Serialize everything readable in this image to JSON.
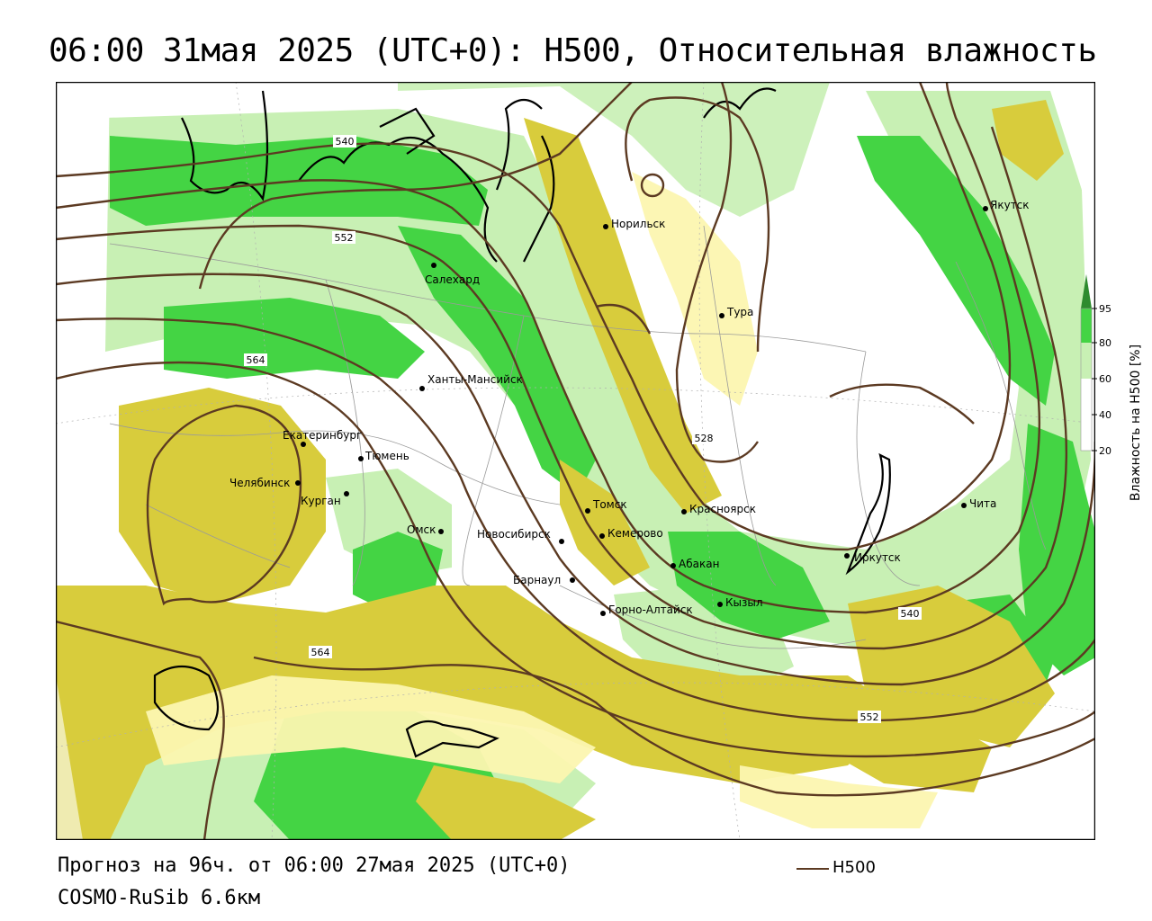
{
  "title": "06:00 31мая 2025 (UTC+0): H500, Относительная влажность",
  "footer": {
    "forecast": "Прогноз на 96ч. от 06:00 27мая 2025 (UTC+0)",
    "model": "COSMO-RuSib 6.6км"
  },
  "legend": {
    "line_label": "H500",
    "line_color": "#5c3a22"
  },
  "colorbar": {
    "title": "Влажность на H500 [%]",
    "ticks": [
      "95",
      "80",
      "60",
      "40",
      "20"
    ],
    "colors": [
      "#2e8b2e",
      "#44d444",
      "#c8f0b4",
      "#ffffff",
      "#ffffff",
      "#d8cc3c"
    ]
  },
  "contour_labels": [
    "540",
    "552",
    "564",
    "528",
    "540",
    "552",
    "564"
  ],
  "cities": [
    {
      "name": "Якутск"
    },
    {
      "name": "Норильск"
    },
    {
      "name": "Салехард"
    },
    {
      "name": "Тура"
    },
    {
      "name": "Ханты-Мансийск"
    },
    {
      "name": "Екатеринбург"
    },
    {
      "name": "Тюмень"
    },
    {
      "name": "Челябинск"
    },
    {
      "name": "Курган"
    },
    {
      "name": "Томск"
    },
    {
      "name": "Красноярск"
    },
    {
      "name": "Омск"
    },
    {
      "name": "Новосибирск"
    },
    {
      "name": "Кемерово"
    },
    {
      "name": "Абакан"
    },
    {
      "name": "Иркутск"
    },
    {
      "name": "Чита"
    },
    {
      "name": "Барнаул"
    },
    {
      "name": "Горно-Алтайск"
    },
    {
      "name": "Кызыл"
    }
  ]
}
